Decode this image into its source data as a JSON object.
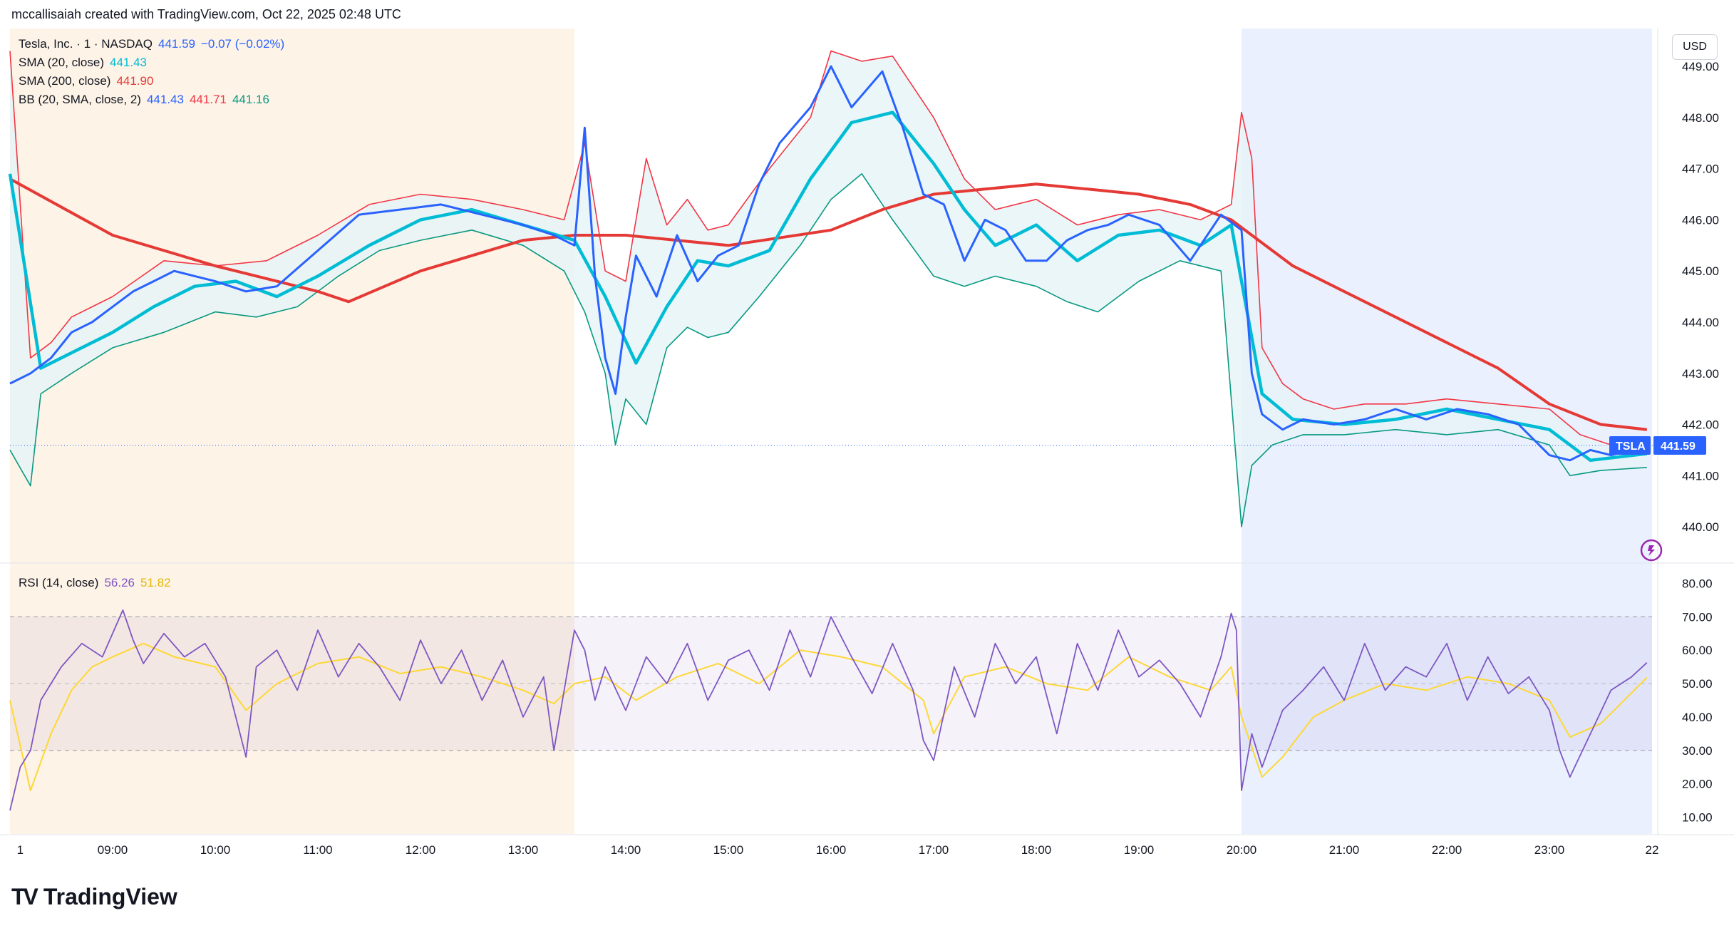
{
  "header": {
    "attribution": "mccallisaiah created with TradingView.com, Oct 22, 2025 02:48 UTC"
  },
  "legend": {
    "symbol": "Tesla, Inc. · 1 · NASDAQ",
    "price": "441.59",
    "change": "−0.07 (−0.02%)",
    "sma20_label": "SMA (20, close)",
    "sma20_value": "441.43",
    "sma200_label": "SMA (200, close)",
    "sma200_value": "441.90",
    "bb_label": "BB (20, SMA, close, 2)",
    "bb_basis": "441.43",
    "bb_upper": "441.71",
    "bb_lower": "441.16",
    "rsi_label": "RSI (14, close)",
    "rsi_value": "56.26",
    "rsi_ma_value": "51.82"
  },
  "toolbar": {
    "currency": "USD"
  },
  "price_tag": {
    "ticker": "TSLA",
    "value": "441.59"
  },
  "brand": {
    "name": "TradingView"
  },
  "colors": {
    "price": "#2962ff",
    "sma20": "#00bcd4",
    "sma200": "#e53935",
    "bb_upper": "#f23645",
    "bb_lower": "#089981",
    "bb_fill": "#e6f4f8",
    "rsi": "#7e57c2",
    "rsi_ma": "#fdd835",
    "premarket_bg": "#fdf3e7",
    "postmarket_bg": "#eaf0fd"
  },
  "chart_data": [
    {
      "type": "line",
      "title": "Tesla, Inc. · 1 · NASDAQ",
      "ylim": [
        439.5,
        449.6
      ],
      "y_ticks": [
        "449.00",
        "448.00",
        "447.00",
        "446.00",
        "445.00",
        "444.00",
        "443.00",
        "442.00",
        "441.00",
        "440.00"
      ],
      "x_ticks": [
        "1",
        "09:00",
        "10:00",
        "11:00",
        "12:00",
        "13:00",
        "14:00",
        "15:00",
        "16:00",
        "17:00",
        "18:00",
        "19:00",
        "20:00",
        "21:00",
        "22:00",
        "23:00",
        "22"
      ],
      "x_tick_hours": [
        8.1,
        9,
        10,
        11,
        12,
        13,
        14,
        15,
        16,
        17,
        18,
        19,
        20,
        21,
        22,
        23,
        24
      ],
      "xlim": [
        8.0,
        24.0
      ],
      "last_hour": 23.95,
      "sessions": {
        "premarket_end": 13.5,
        "postmarket_start": 20.0
      },
      "series": [
        {
          "name": "price",
          "x": [
            8.0,
            8.2,
            8.4,
            8.6,
            8.8,
            9.0,
            9.2,
            9.4,
            9.6,
            9.8,
            10.0,
            10.3,
            10.6,
            11.0,
            11.4,
            11.8,
            12.2,
            12.6,
            13.0,
            13.3,
            13.5,
            13.6,
            13.7,
            13.8,
            13.9,
            14.0,
            14.1,
            14.3,
            14.5,
            14.7,
            14.9,
            15.1,
            15.3,
            15.5,
            15.8,
            16.0,
            16.2,
            16.5,
            16.7,
            16.9,
            17.1,
            17.3,
            17.5,
            17.7,
            17.9,
            18.1,
            18.3,
            18.5,
            18.7,
            18.9,
            19.2,
            19.5,
            19.8,
            20.0,
            20.1,
            20.2,
            20.4,
            20.6,
            20.9,
            21.2,
            21.5,
            21.8,
            22.1,
            22.4,
            22.7,
            23.0,
            23.2,
            23.4,
            23.6,
            23.8,
            23.95
          ],
          "y": [
            442.8,
            443.0,
            443.3,
            443.8,
            444.0,
            444.3,
            444.6,
            444.8,
            445.0,
            444.9,
            444.8,
            444.6,
            444.7,
            445.4,
            446.1,
            446.2,
            446.3,
            446.1,
            445.9,
            445.7,
            445.5,
            447.8,
            444.9,
            443.3,
            442.6,
            444.1,
            445.3,
            444.5,
            445.7,
            444.8,
            445.3,
            445.5,
            446.7,
            447.5,
            448.2,
            449.0,
            448.2,
            448.9,
            447.8,
            446.5,
            446.3,
            445.2,
            446.0,
            445.8,
            445.2,
            445.2,
            445.6,
            445.8,
            445.9,
            446.1,
            445.9,
            445.2,
            446.1,
            445.8,
            443.0,
            442.2,
            441.9,
            442.1,
            442.0,
            442.1,
            442.3,
            442.1,
            442.3,
            442.2,
            442.0,
            441.4,
            441.3,
            441.5,
            441.4,
            441.5,
            441.59
          ]
        },
        {
          "name": "SMA (20, close)",
          "x": [
            8.0,
            8.3,
            8.6,
            9.0,
            9.4,
            9.8,
            10.2,
            10.6,
            11.0,
            11.5,
            12.0,
            12.5,
            13.0,
            13.5,
            13.8,
            14.1,
            14.4,
            14.7,
            15.0,
            15.4,
            15.8,
            16.2,
            16.6,
            17.0,
            17.3,
            17.6,
            18.0,
            18.4,
            18.8,
            19.2,
            19.6,
            19.9,
            20.0,
            20.2,
            20.5,
            21.0,
            21.5,
            22.0,
            22.5,
            23.0,
            23.4,
            23.95
          ],
          "y": [
            446.9,
            443.1,
            443.4,
            443.8,
            444.3,
            444.7,
            444.8,
            444.5,
            444.9,
            445.5,
            446.0,
            446.2,
            445.9,
            445.6,
            444.5,
            443.2,
            444.3,
            445.2,
            445.1,
            445.4,
            446.8,
            447.9,
            448.1,
            447.1,
            446.2,
            445.5,
            445.9,
            445.2,
            445.7,
            445.8,
            445.5,
            445.9,
            444.8,
            442.6,
            442.1,
            442.0,
            442.1,
            442.3,
            442.1,
            441.9,
            441.3,
            441.43
          ]
        },
        {
          "name": "SMA (200, close)",
          "x": [
            8.0,
            9.0,
            10.0,
            11.0,
            11.3,
            12.0,
            13.0,
            13.5,
            14.0,
            15.0,
            16.0,
            16.5,
            17.0,
            17.5,
            18.0,
            18.5,
            19.0,
            19.5,
            19.9,
            20.5,
            21.0,
            22.0,
            22.5,
            23.0,
            23.5,
            23.95
          ],
          "y": [
            446.8,
            445.7,
            445.1,
            444.6,
            444.4,
            445.0,
            445.6,
            445.7,
            445.7,
            445.5,
            445.8,
            446.2,
            446.5,
            446.6,
            446.7,
            446.6,
            446.5,
            446.3,
            446.0,
            445.1,
            444.6,
            443.6,
            443.1,
            442.4,
            442.0,
            441.9
          ]
        },
        {
          "name": "BB upper",
          "x": [
            8.0,
            8.2,
            8.4,
            8.6,
            9.0,
            9.5,
            10.0,
            10.5,
            11.0,
            11.5,
            12.0,
            12.5,
            13.0,
            13.4,
            13.6,
            13.8,
            14.0,
            14.2,
            14.4,
            14.6,
            14.8,
            15.0,
            15.4,
            15.8,
            16.0,
            16.3,
            16.6,
            17.0,
            17.3,
            17.6,
            18.0,
            18.4,
            18.8,
            19.2,
            19.6,
            19.9,
            20.0,
            20.1,
            20.2,
            20.4,
            20.6,
            20.9,
            21.2,
            21.6,
            22.0,
            22.5,
            23.0,
            23.3,
            23.6,
            23.95
          ],
          "y": [
            449.3,
            443.3,
            443.6,
            444.1,
            444.5,
            445.2,
            445.1,
            445.2,
            445.7,
            446.3,
            446.5,
            446.4,
            446.2,
            446.0,
            447.5,
            445.0,
            444.8,
            447.2,
            445.9,
            446.4,
            445.8,
            445.9,
            447.0,
            448.0,
            449.3,
            449.1,
            449.2,
            448.0,
            446.8,
            446.2,
            446.4,
            445.9,
            446.1,
            446.2,
            446.0,
            446.3,
            448.1,
            447.2,
            443.5,
            442.8,
            442.5,
            442.3,
            442.4,
            442.4,
            442.5,
            442.4,
            442.3,
            441.8,
            441.6,
            441.71
          ]
        },
        {
          "name": "BB lower",
          "x": [
            8.0,
            8.2,
            8.3,
            8.6,
            9.0,
            9.5,
            10.0,
            10.4,
            10.8,
            11.2,
            11.6,
            12.0,
            12.5,
            13.0,
            13.4,
            13.6,
            13.8,
            13.9,
            14.0,
            14.2,
            14.4,
            14.6,
            14.8,
            15.0,
            15.3,
            15.7,
            16.0,
            16.3,
            16.6,
            17.0,
            17.3,
            17.6,
            18.0,
            18.3,
            18.6,
            19.0,
            19.4,
            19.8,
            20.0,
            20.1,
            20.3,
            20.6,
            21.0,
            21.5,
            22.0,
            22.5,
            23.0,
            23.2,
            23.5,
            23.95
          ],
          "y": [
            441.5,
            440.8,
            442.6,
            443.0,
            443.5,
            443.8,
            444.2,
            444.1,
            444.3,
            444.9,
            445.4,
            445.6,
            445.8,
            445.5,
            445.0,
            444.2,
            443.0,
            441.6,
            442.5,
            442.0,
            443.5,
            443.9,
            443.7,
            443.8,
            444.5,
            445.5,
            446.4,
            446.9,
            446.0,
            444.9,
            444.7,
            444.9,
            444.7,
            444.4,
            444.2,
            444.8,
            445.2,
            445.0,
            440.0,
            441.2,
            441.6,
            441.8,
            441.8,
            441.9,
            441.8,
            441.9,
            441.6,
            441.0,
            441.1,
            441.16
          ]
        }
      ]
    },
    {
      "type": "line",
      "title": "RSI (14, close)",
      "ylim": [
        5,
        85
      ],
      "y_ticks": [
        "80.00",
        "70.00",
        "60.00",
        "50.00",
        "40.00",
        "30.00",
        "20.00",
        "10.00"
      ],
      "bands": {
        "upper": 70,
        "middle": 50,
        "lower": 30
      },
      "series": [
        {
          "name": "RSI",
          "x": [
            8.0,
            8.1,
            8.2,
            8.3,
            8.5,
            8.7,
            8.9,
            9.1,
            9.2,
            9.3,
            9.5,
            9.7,
            9.9,
            10.1,
            10.2,
            10.3,
            10.4,
            10.6,
            10.8,
            11.0,
            11.2,
            11.4,
            11.6,
            11.8,
            12.0,
            12.2,
            12.4,
            12.6,
            12.8,
            13.0,
            13.2,
            13.3,
            13.4,
            13.5,
            13.6,
            13.7,
            13.8,
            14.0,
            14.2,
            14.4,
            14.6,
            14.8,
            15.0,
            15.2,
            15.4,
            15.6,
            15.8,
            16.0,
            16.2,
            16.4,
            16.6,
            16.8,
            16.9,
            17.0,
            17.2,
            17.4,
            17.6,
            17.8,
            18.0,
            18.2,
            18.4,
            18.6,
            18.8,
            19.0,
            19.2,
            19.4,
            19.6,
            19.8,
            19.9,
            19.95,
            20.0,
            20.1,
            20.2,
            20.4,
            20.6,
            20.8,
            21.0,
            21.2,
            21.4,
            21.6,
            21.8,
            22.0,
            22.2,
            22.4,
            22.6,
            22.8,
            23.0,
            23.1,
            23.2,
            23.4,
            23.6,
            23.8,
            23.95
          ],
          "y": [
            12,
            25,
            30,
            45,
            55,
            62,
            58,
            72,
            63,
            56,
            65,
            58,
            62,
            52,
            40,
            28,
            55,
            60,
            48,
            66,
            52,
            62,
            55,
            45,
            63,
            50,
            60,
            45,
            57,
            40,
            52,
            30,
            48,
            66,
            60,
            45,
            55,
            42,
            58,
            50,
            62,
            45,
            57,
            60,
            48,
            66,
            52,
            70,
            58,
            47,
            62,
            48,
            33,
            27,
            55,
            40,
            62,
            50,
            58,
            35,
            62,
            48,
            66,
            52,
            57,
            50,
            40,
            58,
            71,
            66,
            18,
            35,
            25,
            42,
            48,
            55,
            45,
            62,
            48,
            55,
            52,
            62,
            45,
            58,
            47,
            52,
            42,
            30,
            22,
            35,
            48,
            52,
            56.26
          ]
        },
        {
          "name": "RSI-based MA",
          "x": [
            8.0,
            8.2,
            8.4,
            8.6,
            8.8,
            9.0,
            9.3,
            9.6,
            10.0,
            10.3,
            10.6,
            11.0,
            11.4,
            11.8,
            12.2,
            12.6,
            13.0,
            13.3,
            13.5,
            13.8,
            14.1,
            14.5,
            14.9,
            15.3,
            15.7,
            16.1,
            16.5,
            16.9,
            17.0,
            17.3,
            17.7,
            18.1,
            18.5,
            18.9,
            19.3,
            19.7,
            19.9,
            20.0,
            20.2,
            20.4,
            20.7,
            21.0,
            21.4,
            21.8,
            22.2,
            22.6,
            23.0,
            23.2,
            23.5,
            23.95
          ],
          "y": [
            45,
            18,
            35,
            48,
            55,
            58,
            62,
            58,
            55,
            42,
            50,
            56,
            58,
            53,
            55,
            52,
            48,
            44,
            50,
            52,
            45,
            52,
            56,
            50,
            60,
            58,
            55,
            45,
            35,
            52,
            55,
            50,
            48,
            58,
            52,
            48,
            55,
            40,
            22,
            28,
            40,
            45,
            50,
            48,
            52,
            50,
            45,
            34,
            38,
            51.82
          ]
        }
      ]
    }
  ]
}
